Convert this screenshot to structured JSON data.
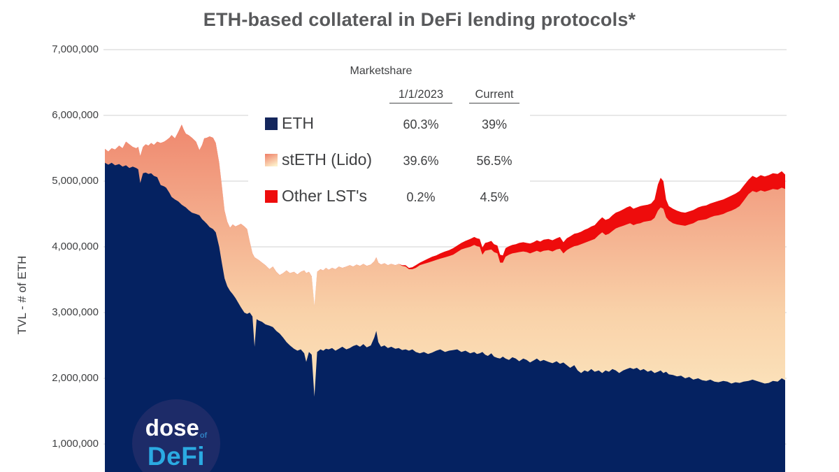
{
  "title": "ETH-based collateral in DeFi lending protocols*",
  "y_axis": {
    "title": "TVL - # of ETH",
    "ticks": [
      "7,000,000",
      "6,000,000",
      "5,000,000",
      "4,000,000",
      "3,000,000",
      "2,000,000",
      "1,000,000"
    ]
  },
  "legend": {
    "heading": "Marketshare",
    "columns": {
      "y2023": "1/1/2023",
      "current": "Current"
    },
    "rows": [
      {
        "key": "eth",
        "label": "ETH",
        "y2023": "60.3%",
        "current": "39%"
      },
      {
        "key": "steth",
        "label": "stETH (Lido)",
        "y2023": "39.6%",
        "current": "56.5%"
      },
      {
        "key": "other",
        "label": "Other LST's",
        "y2023": "0.2%",
        "current": "4.5%"
      }
    ]
  },
  "logo": {
    "word1": "dose",
    "word_of": "of",
    "word2": "DeFi"
  },
  "colors": {
    "eth_area": "#052261",
    "eth_swatch": "#14265C",
    "steth_gradient": [
      "#EE7E66",
      "#F3A788",
      "#F9D2A9",
      "#FDF0CA"
    ],
    "other_area": "#EE0C0C",
    "gridline": "#DADADA",
    "title_text": "#58595B",
    "axis_text": "#3F4042",
    "logo_circle": "#1D2B68",
    "logo_word1": "#FFFFFF",
    "logo_of": "#2F7FC1",
    "logo_word2": "#2BAAE2"
  },
  "chart_data": {
    "type": "area",
    "stacked": true,
    "title": "ETH-based collateral in DeFi lending protocols*",
    "ylabel": "TVL - # of ETH",
    "yticks_eth": [
      1000000,
      2000000,
      3000000,
      4000000,
      5000000,
      6000000,
      7000000
    ],
    "ylim_visible": [
      600000,
      7000000
    ],
    "x_axis_labels_visible": false,
    "grid": "horizontal",
    "series_order": [
      "ETH",
      "stETH (Lido)",
      "Other LST's"
    ],
    "marketshare": {
      "as_of_1_1_2023": {
        "ETH": 60.3,
        "stETH_Lido": 39.6,
        "Other_LSTs": 0.2
      },
      "current": {
        "ETH": 39.0,
        "stETH_Lido": 56.5,
        "Other_LSTs": 4.5
      }
    },
    "points_format": "[x_fraction_of_timeline, ETH_stack_top_millions, ETH_plus_stETH_stack_top_millions, total_with_other_LSTs_millions]",
    "points": [
      [
        0.0,
        5.28,
        5.49,
        5.49
      ],
      [
        0.005,
        5.25,
        5.45,
        5.45
      ],
      [
        0.01,
        5.28,
        5.5,
        5.5
      ],
      [
        0.015,
        5.24,
        5.48,
        5.48
      ],
      [
        0.021,
        5.26,
        5.54,
        5.54
      ],
      [
        0.026,
        5.22,
        5.5,
        5.5
      ],
      [
        0.031,
        5.24,
        5.6,
        5.6
      ],
      [
        0.036,
        5.2,
        5.56,
        5.56
      ],
      [
        0.041,
        5.22,
        5.52,
        5.52
      ],
      [
        0.046,
        5.2,
        5.5,
        5.5
      ],
      [
        0.049,
        5.18,
        5.52,
        5.52
      ],
      [
        0.052,
        4.97,
        5.38,
        5.38
      ],
      [
        0.056,
        5.12,
        5.52,
        5.52
      ],
      [
        0.06,
        5.13,
        5.56,
        5.56
      ],
      [
        0.064,
        5.11,
        5.54,
        5.54
      ],
      [
        0.068,
        5.12,
        5.58,
        5.58
      ],
      [
        0.072,
        5.08,
        5.55,
        5.55
      ],
      [
        0.077,
        5.06,
        5.6,
        5.6
      ],
      [
        0.082,
        4.94,
        5.58,
        5.58
      ],
      [
        0.087,
        4.92,
        5.6,
        5.6
      ],
      [
        0.09,
        4.9,
        5.62,
        5.62
      ],
      [
        0.095,
        4.82,
        5.66,
        5.66
      ],
      [
        0.098,
        4.76,
        5.7,
        5.7
      ],
      [
        0.103,
        4.72,
        5.65,
        5.65
      ],
      [
        0.108,
        4.69,
        5.75,
        5.75
      ],
      [
        0.113,
        4.64,
        5.86,
        5.86
      ],
      [
        0.116,
        4.62,
        5.78,
        5.78
      ],
      [
        0.119,
        4.6,
        5.72,
        5.72
      ],
      [
        0.123,
        4.56,
        5.7,
        5.7
      ],
      [
        0.128,
        4.52,
        5.66,
        5.66
      ],
      [
        0.134,
        4.5,
        5.6,
        5.6
      ],
      [
        0.139,
        4.48,
        5.47,
        5.47
      ],
      [
        0.143,
        4.42,
        5.55,
        5.55
      ],
      [
        0.146,
        4.39,
        5.65,
        5.65
      ],
      [
        0.15,
        4.35,
        5.66,
        5.66
      ],
      [
        0.154,
        4.3,
        5.68,
        5.68
      ],
      [
        0.159,
        4.27,
        5.66,
        5.66
      ],
      [
        0.163,
        4.22,
        5.58,
        5.58
      ],
      [
        0.168,
        4.0,
        5.28,
        5.28
      ],
      [
        0.172,
        3.75,
        4.92,
        4.92
      ],
      [
        0.176,
        3.52,
        4.55,
        4.55
      ],
      [
        0.18,
        3.4,
        4.38,
        4.38
      ],
      [
        0.184,
        3.33,
        4.29,
        4.29
      ],
      [
        0.188,
        3.28,
        4.34,
        4.34
      ],
      [
        0.192,
        3.22,
        4.31,
        4.31
      ],
      [
        0.196,
        3.15,
        4.33,
        4.33
      ],
      [
        0.2,
        3.08,
        4.35,
        4.35
      ],
      [
        0.205,
        3.0,
        4.31,
        4.31
      ],
      [
        0.209,
        2.98,
        4.27,
        4.27
      ],
      [
        0.213,
        3.0,
        4.08,
        4.08
      ],
      [
        0.217,
        2.94,
        3.9,
        3.9
      ],
      [
        0.22,
        2.48,
        3.84,
        3.84
      ],
      [
        0.223,
        2.9,
        3.82,
        3.82
      ],
      [
        0.226,
        2.88,
        3.8,
        3.8
      ],
      [
        0.231,
        2.86,
        3.76,
        3.76
      ],
      [
        0.236,
        2.82,
        3.72,
        3.72
      ],
      [
        0.242,
        2.8,
        3.66,
        3.66
      ],
      [
        0.247,
        2.78,
        3.7,
        3.7
      ],
      [
        0.252,
        2.72,
        3.62,
        3.62
      ],
      [
        0.257,
        2.68,
        3.57,
        3.57
      ],
      [
        0.262,
        2.62,
        3.6,
        3.6
      ],
      [
        0.267,
        2.55,
        3.64,
        3.64
      ],
      [
        0.272,
        2.5,
        3.6,
        3.6
      ],
      [
        0.278,
        2.45,
        3.62,
        3.62
      ],
      [
        0.283,
        2.42,
        3.58,
        3.58
      ],
      [
        0.288,
        2.44,
        3.62,
        3.62
      ],
      [
        0.293,
        2.38,
        3.64,
        3.64
      ],
      [
        0.296,
        2.25,
        3.6,
        3.6
      ],
      [
        0.3,
        2.4,
        3.62,
        3.62
      ],
      [
        0.304,
        2.36,
        3.55,
        3.55
      ],
      [
        0.308,
        1.72,
        3.1,
        3.1
      ],
      [
        0.312,
        2.4,
        3.62,
        3.62
      ],
      [
        0.317,
        2.44,
        3.66,
        3.66
      ],
      [
        0.321,
        2.42,
        3.64,
        3.64
      ],
      [
        0.325,
        2.45,
        3.68,
        3.68
      ],
      [
        0.329,
        2.44,
        3.65,
        3.65
      ],
      [
        0.334,
        2.46,
        3.68,
        3.68
      ],
      [
        0.339,
        2.42,
        3.66,
        3.66
      ],
      [
        0.344,
        2.45,
        3.7,
        3.7
      ],
      [
        0.349,
        2.48,
        3.68,
        3.68
      ],
      [
        0.355,
        2.44,
        3.7,
        3.7
      ],
      [
        0.36,
        2.46,
        3.72,
        3.72
      ],
      [
        0.365,
        2.49,
        3.7,
        3.7
      ],
      [
        0.37,
        2.51,
        3.73,
        3.73
      ],
      [
        0.375,
        2.48,
        3.71,
        3.71
      ],
      [
        0.38,
        2.52,
        3.74,
        3.74
      ],
      [
        0.385,
        2.47,
        3.71,
        3.71
      ],
      [
        0.391,
        2.5,
        3.73,
        3.73
      ],
      [
        0.396,
        2.62,
        3.78,
        3.78
      ],
      [
        0.399,
        2.72,
        3.84,
        3.84
      ],
      [
        0.402,
        2.55,
        3.76,
        3.76
      ],
      [
        0.406,
        2.48,
        3.73,
        3.73
      ],
      [
        0.411,
        2.5,
        3.75,
        3.75
      ],
      [
        0.416,
        2.46,
        3.72,
        3.72
      ],
      [
        0.421,
        2.48,
        3.74,
        3.74
      ],
      [
        0.427,
        2.45,
        3.72,
        3.72
      ],
      [
        0.432,
        2.46,
        3.74,
        3.74
      ],
      [
        0.437,
        2.43,
        3.71,
        3.72
      ],
      [
        0.442,
        2.44,
        3.7,
        3.72
      ],
      [
        0.447,
        2.42,
        3.66,
        3.68
      ],
      [
        0.452,
        2.44,
        3.66,
        3.69
      ],
      [
        0.457,
        2.4,
        3.68,
        3.72
      ],
      [
        0.463,
        2.38,
        3.72,
        3.76
      ],
      [
        0.469,
        2.4,
        3.74,
        3.79
      ],
      [
        0.475,
        2.37,
        3.76,
        3.82
      ],
      [
        0.481,
        2.39,
        3.78,
        3.85
      ],
      [
        0.487,
        2.42,
        3.8,
        3.87
      ],
      [
        0.493,
        2.44,
        3.82,
        3.9
      ],
      [
        0.5,
        2.4,
        3.84,
        3.93
      ],
      [
        0.506,
        2.42,
        3.86,
        3.95
      ],
      [
        0.512,
        2.43,
        3.88,
        3.98
      ],
      [
        0.518,
        2.44,
        3.92,
        4.02
      ],
      [
        0.524,
        2.4,
        3.96,
        4.06
      ],
      [
        0.53,
        2.42,
        3.98,
        4.09
      ],
      [
        0.537,
        2.38,
        4.0,
        4.12
      ],
      [
        0.543,
        2.4,
        4.03,
        4.15
      ],
      [
        0.547,
        2.37,
        4.01,
        4.13
      ],
      [
        0.551,
        2.38,
        4.0,
        4.12
      ],
      [
        0.555,
        2.4,
        3.88,
        3.99
      ],
      [
        0.559,
        2.36,
        3.94,
        4.06
      ],
      [
        0.563,
        2.34,
        3.95,
        4.07
      ],
      [
        0.568,
        2.38,
        3.96,
        4.09
      ],
      [
        0.572,
        2.33,
        3.92,
        4.04
      ],
      [
        0.577,
        2.31,
        3.9,
        4.02
      ],
      [
        0.581,
        2.3,
        3.76,
        3.88
      ],
      [
        0.585,
        2.33,
        3.76,
        3.87
      ],
      [
        0.589,
        2.3,
        3.85,
        3.98
      ],
      [
        0.594,
        2.28,
        3.88,
        4.01
      ],
      [
        0.599,
        2.32,
        3.9,
        4.03
      ],
      [
        0.604,
        2.3,
        3.91,
        4.04
      ],
      [
        0.609,
        2.26,
        3.92,
        4.06
      ],
      [
        0.615,
        2.3,
        3.93,
        4.07
      ],
      [
        0.62,
        2.28,
        3.92,
        4.06
      ],
      [
        0.625,
        2.24,
        3.9,
        4.05
      ],
      [
        0.63,
        2.27,
        3.92,
        4.07
      ],
      [
        0.635,
        2.3,
        3.94,
        4.1
      ],
      [
        0.64,
        2.26,
        3.92,
        4.08
      ],
      [
        0.645,
        2.28,
        3.94,
        4.11
      ],
      [
        0.652,
        2.25,
        3.95,
        4.12
      ],
      [
        0.658,
        2.23,
        3.93,
        4.1
      ],
      [
        0.664,
        2.26,
        3.96,
        4.13
      ],
      [
        0.669,
        2.22,
        3.97,
        4.15
      ],
      [
        0.674,
        2.24,
        3.9,
        4.07
      ],
      [
        0.679,
        2.2,
        3.95,
        4.13
      ],
      [
        0.684,
        2.16,
        3.98,
        4.16
      ],
      [
        0.69,
        2.2,
        4.01,
        4.2
      ],
      [
        0.695,
        2.12,
        4.02,
        4.21
      ],
      [
        0.7,
        2.08,
        4.04,
        4.23
      ],
      [
        0.705,
        2.12,
        4.06,
        4.26
      ],
      [
        0.71,
        2.1,
        4.08,
        4.28
      ],
      [
        0.715,
        2.14,
        4.1,
        4.31
      ],
      [
        0.72,
        2.1,
        4.12,
        4.33
      ],
      [
        0.726,
        2.12,
        4.18,
        4.4
      ],
      [
        0.731,
        2.08,
        4.22,
        4.45
      ],
      [
        0.736,
        2.12,
        4.18,
        4.41
      ],
      [
        0.741,
        2.1,
        4.2,
        4.43
      ],
      [
        0.746,
        2.14,
        4.24,
        4.48
      ],
      [
        0.751,
        2.12,
        4.28,
        4.52
      ],
      [
        0.756,
        2.08,
        4.3,
        4.54
      ],
      [
        0.762,
        2.12,
        4.32,
        4.57
      ],
      [
        0.767,
        2.14,
        4.34,
        4.6
      ],
      [
        0.772,
        2.16,
        4.36,
        4.62
      ],
      [
        0.777,
        2.14,
        4.33,
        4.58
      ],
      [
        0.782,
        2.16,
        4.35,
        4.6
      ],
      [
        0.787,
        2.12,
        4.36,
        4.62
      ],
      [
        0.792,
        2.14,
        4.38,
        4.63
      ],
      [
        0.798,
        2.1,
        4.39,
        4.64
      ],
      [
        0.803,
        2.12,
        4.4,
        4.66
      ],
      [
        0.808,
        2.08,
        4.44,
        4.72
      ],
      [
        0.813,
        2.1,
        4.55,
        4.95
      ],
      [
        0.817,
        2.12,
        4.6,
        5.05
      ],
      [
        0.821,
        2.08,
        4.58,
        5.0
      ],
      [
        0.825,
        2.1,
        4.45,
        4.72
      ],
      [
        0.829,
        2.06,
        4.4,
        4.62
      ],
      [
        0.835,
        2.05,
        4.36,
        4.58
      ],
      [
        0.841,
        2.03,
        4.34,
        4.55
      ],
      [
        0.847,
        2.04,
        4.33,
        4.53
      ],
      [
        0.853,
        2.0,
        4.32,
        4.52
      ],
      [
        0.859,
        2.02,
        4.34,
        4.54
      ],
      [
        0.865,
        1.98,
        4.36,
        4.56
      ],
      [
        0.872,
        2.0,
        4.4,
        4.6
      ],
      [
        0.878,
        1.97,
        4.41,
        4.62
      ],
      [
        0.884,
        1.96,
        4.42,
        4.63
      ],
      [
        0.89,
        1.98,
        4.45,
        4.66
      ],
      [
        0.896,
        1.95,
        4.47,
        4.68
      ],
      [
        0.902,
        1.94,
        4.48,
        4.7
      ],
      [
        0.909,
        1.96,
        4.5,
        4.72
      ],
      [
        0.915,
        1.95,
        4.53,
        4.75
      ],
      [
        0.921,
        1.92,
        4.55,
        4.78
      ],
      [
        0.927,
        1.94,
        4.58,
        4.81
      ],
      [
        0.933,
        1.93,
        4.62,
        4.85
      ],
      [
        0.939,
        1.95,
        4.7,
        4.93
      ],
      [
        0.946,
        1.96,
        4.8,
        5.02
      ],
      [
        0.952,
        1.98,
        4.85,
        5.08
      ],
      [
        0.958,
        1.96,
        4.83,
        5.05
      ],
      [
        0.964,
        1.94,
        4.86,
        5.09
      ],
      [
        0.97,
        1.92,
        4.84,
        5.07
      ],
      [
        0.976,
        1.93,
        4.86,
        5.09
      ],
      [
        0.982,
        1.96,
        4.88,
        5.12
      ],
      [
        0.989,
        1.95,
        4.87,
        5.11
      ],
      [
        0.995,
        2.0,
        4.9,
        5.15
      ],
      [
        1.0,
        1.97,
        4.88,
        5.1
      ]
    ]
  }
}
